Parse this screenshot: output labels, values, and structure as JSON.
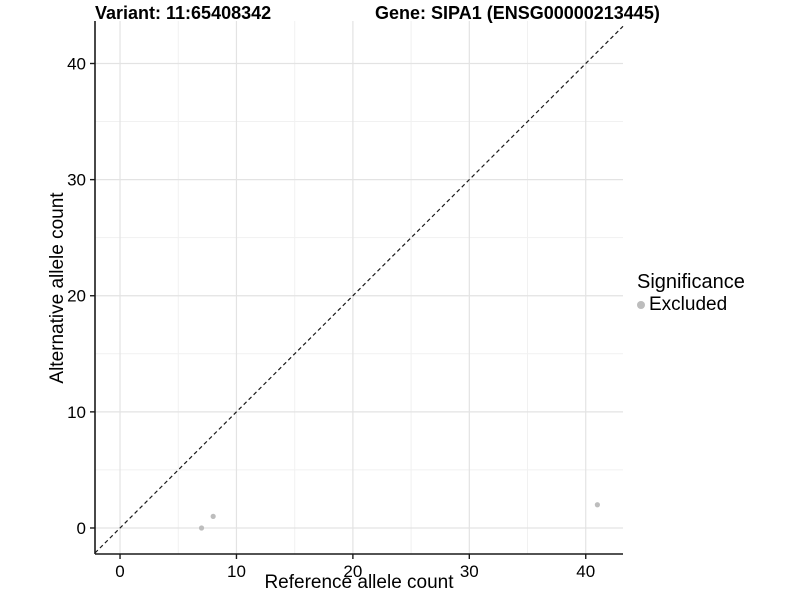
{
  "header": {
    "title_left": "Variant: 11:65408342",
    "title_right": "Gene: SIPA1 (ENSG00000213445)"
  },
  "chart_data": {
    "type": "scatter",
    "xlabel": "Reference allele count",
    "ylabel": "Alternative allele count",
    "xlim": [
      -2.15,
      43.2
    ],
    "ylim": [
      -2.24,
      43.66
    ],
    "x_ticks": [
      0,
      10,
      20,
      30,
      40
    ],
    "y_ticks": [
      0,
      10,
      20,
      30,
      40
    ],
    "x_minor_ticks": [
      5,
      15,
      25,
      35
    ],
    "y_minor_ticks": [
      5,
      15,
      25,
      35
    ],
    "grid": true,
    "identity_line": {
      "style": "dashed",
      "slope": 1,
      "intercept": 0
    },
    "series": [
      {
        "name": "Excluded",
        "color": "#bdbdbd",
        "points": [
          {
            "x": 7,
            "y": 0
          },
          {
            "x": 8,
            "y": 1
          },
          {
            "x": 41,
            "y": 2
          }
        ]
      }
    ],
    "legend": {
      "title": "Significance",
      "position": "right",
      "items": [
        {
          "label": "Excluded",
          "color": "#bdbdbd"
        }
      ]
    }
  },
  "colors": {
    "background": "#ffffff",
    "grid_major": "#e3e3e3",
    "grid_minor": "#f1f1f1",
    "axis_line": "#1a1a1a",
    "tick_text": "#000000",
    "identity_line": "#1a1a1a",
    "point": "#bdbdbd"
  }
}
